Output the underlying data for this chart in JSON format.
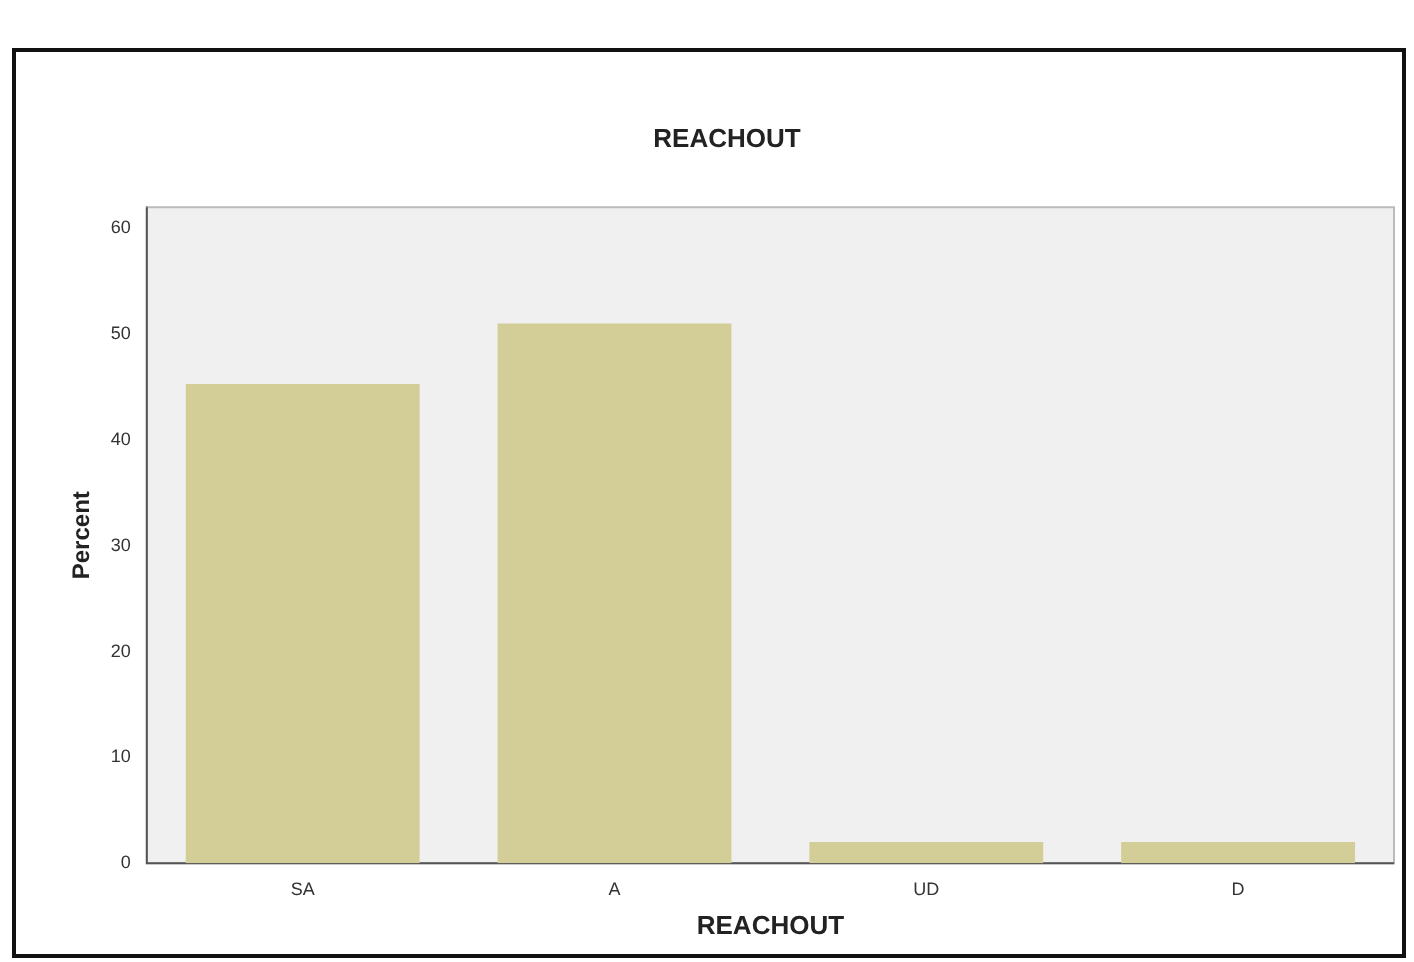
{
  "chart_data": {
    "type": "bar",
    "title": "REACHOUT",
    "xlabel": "REACHOUT",
    "ylabel": "Percent",
    "categories": [
      "SA",
      "A",
      "UD",
      "D"
    ],
    "values": [
      45.3,
      51,
      2,
      2
    ],
    "color": "#d3ce97",
    "ylim": [
      0,
      62
    ],
    "yticks": [
      0,
      10,
      20,
      30,
      40,
      50,
      60
    ],
    "grid": false,
    "legend": false
  }
}
